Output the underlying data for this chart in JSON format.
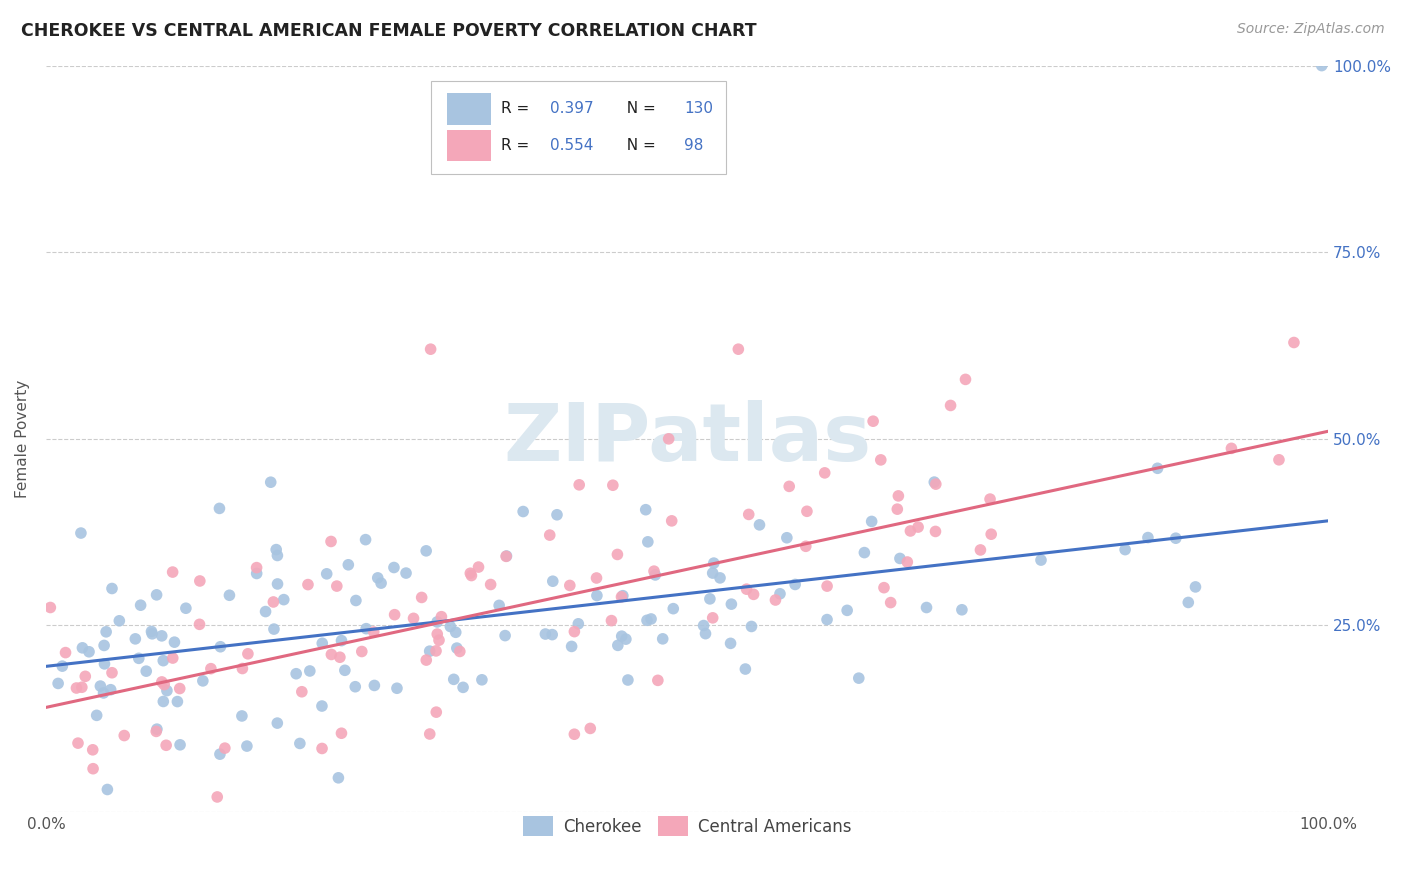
{
  "title": "CHEROKEE VS CENTRAL AMERICAN FEMALE POVERTY CORRELATION CHART",
  "source": "Source: ZipAtlas.com",
  "ylabel": "Female Poverty",
  "cherokee_color": "#a8c4e0",
  "central_american_color": "#f4a7b9",
  "cherokee_line_color": "#4472c4",
  "central_american_line_color": "#e06880",
  "cherokee_R": 0.397,
  "cherokee_N": 130,
  "central_american_R": 0.554,
  "central_american_N": 98,
  "background_color": "#ffffff",
  "grid_color": "#cccccc",
  "right_tick_color": "#4472c4",
  "left_tick_color": "#666666",
  "title_color": "#222222",
  "source_color": "#999999",
  "watermark_color": "#dce8f0",
  "cherokee_line_intercept": 0.195,
  "cherokee_line_slope": 0.195,
  "central_american_line_intercept": 0.14,
  "central_american_line_slope": 0.37
}
